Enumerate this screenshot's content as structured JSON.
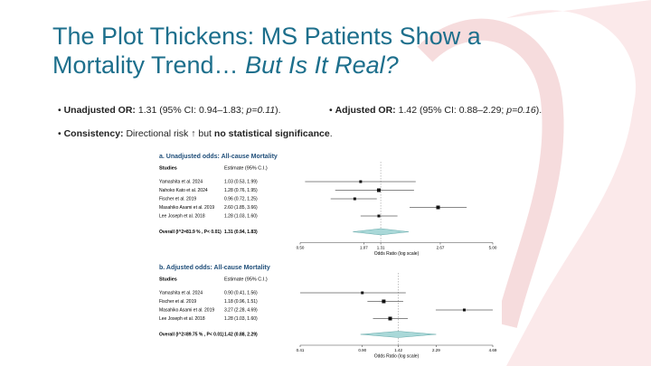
{
  "slide": {
    "title_line1": "The Plot Thickens: MS Patients Show a",
    "title_line2": "Mortality Trend…",
    "title_italic": "But Is It Real?",
    "bullet1": {
      "label": "Unadjusted OR:",
      "text": " 1.31 (95% CI: 0.94–1.83; ",
      "p": "p=0.11",
      "end": ")."
    },
    "bullet2": {
      "label": "Adjusted OR:",
      "text": " 1.42 (95% CI: 0.88–2.29; ",
      "p": "p=0.16",
      "end": ")."
    },
    "bullet3": {
      "label": "Consistency:",
      "text": " Directional risk ↑ but ",
      "strong": "no statistical significance",
      "end": "."
    }
  },
  "chart_data": [
    {
      "type": "forest",
      "title": "a. Unadjusted odds: All-cause Mortality",
      "col_study": "Studies",
      "col_estimate": "Estimate (95% C.I.)",
      "categories": [
        "Yamashita et al. 2024",
        "Nahoko Kato et al. 2024",
        "Fischer et al. 2019",
        "Masahiko Asami et al. 2019",
        "Lee Joseph et al. 2018"
      ],
      "values": [
        1.03,
        1.28,
        0.96,
        2.6,
        1.28
      ],
      "lower": [
        0.53,
        0.76,
        0.72,
        1.85,
        1.03
      ],
      "upper": [
        1.99,
        1.95,
        1.25,
        3.66,
        1.6
      ],
      "value_labels": [
        "1.03 (0.53, 1.99)",
        "1.28 (0.76, 1.95)",
        "0.96 (0.72, 1.25)",
        "2.60 (1.85, 3.66)",
        "1.28 (1.03, 1.60)"
      ],
      "overall": {
        "label": "Overall (I^2=81.9 % , P< 0.01)",
        "value": 1.31,
        "lower": 0.94,
        "upper": 1.83,
        "value_label": "1.31 (0.94, 1.83)"
      },
      "xlabel": "Odds Ratio (log scale)",
      "log_scale": true,
      "xlim": [
        0.5,
        5
      ],
      "xticks": [
        {
          "value": 0.5,
          "label": "0.50"
        },
        1.07,
        1.31,
        2.67,
        {
          "value": 5,
          "label": "5.00"
        }
      ],
      "color": "#111111",
      "diamond_color": "#a9d8d8"
    },
    {
      "type": "forest",
      "title": "b. Adjusted odds: All-cause Mortality",
      "col_study": "Studies",
      "col_estimate": "Estimate (95% C.I.)",
      "categories": [
        "Yamashita et al. 2024",
        "Fischer et al. 2019",
        "Masahiko Asami et al. 2019",
        "Lee Joseph et al. 2018"
      ],
      "values": [
        0.9,
        1.18,
        3.27,
        1.28
      ],
      "lower": [
        0.41,
        0.96,
        2.28,
        1.03
      ],
      "upper": [
        1.56,
        1.51,
        4.69,
        1.6
      ],
      "value_labels": [
        "0.90 (0.41, 1.56)",
        "1.18 (0.96, 1.51)",
        "3.27 (2.28, 4.69)",
        "1.28 (1.03, 1.60)"
      ],
      "overall": {
        "label": "Overall (I^2=89.75 % , P< 0.01)",
        "value": 1.42,
        "lower": 0.88,
        "upper": 2.29,
        "value_label": "1.42 (0.88, 2.29)"
      },
      "xlabel": "Odds Ratio (log scale)",
      "log_scale": true,
      "xlim": [
        0.41,
        4.69
      ],
      "xticks": [
        0.41,
        {
          "value": 0.9,
          "label": "0.90"
        },
        1.42,
        2.29,
        4.69
      ],
      "color": "#111111",
      "diamond_color": "#a9d8d8"
    }
  ]
}
